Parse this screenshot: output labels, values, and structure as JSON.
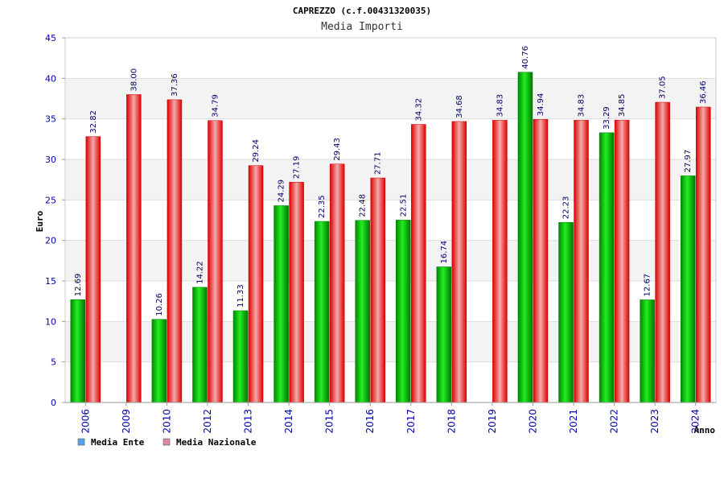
{
  "chart_data": {
    "type": "bar",
    "title": "CAPREZZO (c.f.00431320035)",
    "subtitle": "Media Importi",
    "xlabel": "Anno",
    "ylabel": "Euro",
    "ylim": [
      0,
      45
    ],
    "yticks": [
      0,
      5,
      10,
      15,
      20,
      25,
      30,
      35,
      40,
      45
    ],
    "grid": true,
    "legend_position": "bottom-left",
    "categories": [
      "2006",
      "2009",
      "2010",
      "2012",
      "2013",
      "2014",
      "2015",
      "2016",
      "2017",
      "2018",
      "2019",
      "2020",
      "2021",
      "2022",
      "2023",
      "2024"
    ],
    "series": [
      {
        "name": "Media Ente",
        "color": "#00cc00",
        "legend_color": "#5aa0ee",
        "values": [
          12.69,
          null,
          10.26,
          14.22,
          11.33,
          24.29,
          22.35,
          22.48,
          22.51,
          16.74,
          null,
          40.76,
          22.23,
          33.29,
          12.67,
          27.97
        ],
        "labels": [
          "12.69",
          "",
          "10.26",
          "14.22",
          "11.33",
          "24.29",
          "22.35",
          "22.48",
          "22.51",
          "16.74",
          "",
          "40.76",
          "22.23",
          "33.29",
          "12.67",
          "27.97"
        ]
      },
      {
        "name": "Media Nazionale",
        "color": "#ee1111",
        "legend_color": "#dd88aa",
        "values": [
          32.82,
          38.0,
          37.36,
          34.79,
          29.24,
          27.19,
          29.43,
          27.71,
          34.32,
          34.68,
          34.83,
          34.94,
          34.83,
          34.85,
          37.05,
          36.46
        ],
        "labels": [
          "32.82",
          "38.00",
          "37.36",
          "34.79",
          "29.24",
          "27.19",
          "29.43",
          "27.71",
          "34.32",
          "34.68",
          "34.83",
          "34.94",
          "34.83",
          "34.85",
          "37.05",
          "36.46"
        ]
      }
    ]
  }
}
